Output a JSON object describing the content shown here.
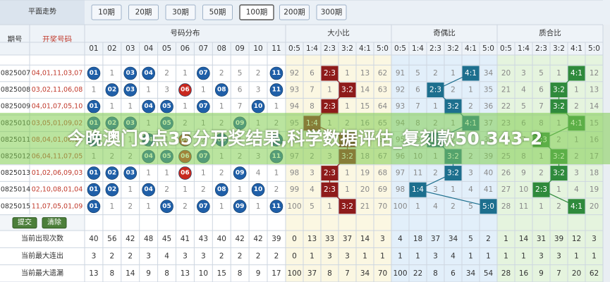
{
  "toolbar": {
    "title": "平面走势",
    "periods": [
      "10期",
      "20期",
      "30期",
      "50期",
      "100期",
      "200期",
      "300期"
    ],
    "selected": "100期"
  },
  "table": {
    "headers": {
      "issue": "期号",
      "numbers": "开奖号码",
      "distribution": "号码分布",
      "size_ratio": "大小比",
      "parity_ratio": "奇偶比",
      "prime_ratio": "质合比"
    },
    "number_columns": [
      "01",
      "02",
      "03",
      "04",
      "05",
      "06",
      "07",
      "08",
      "09",
      "10",
      "11"
    ],
    "ratio_columns": [
      "0:5",
      "1:4",
      "2:3",
      "3:2",
      "4:1",
      "5:0"
    ],
    "ball_color": "#1f5fa8",
    "hit_colors": {
      "size": "#8e1b1b",
      "parity": "#1d6f8e",
      "prime": "#2f8a3c"
    },
    "rows": [
      {
        "issue": "0825007",
        "numbers": "04,01,11,03,07",
        "distribution": [
          {
            "ball": "01"
          },
          1,
          {
            "ball": "03"
          },
          {
            "ball": "04"
          },
          2,
          1,
          {
            "ball": "07"
          },
          2,
          5,
          2,
          {
            "ball": "11"
          }
        ],
        "size": [
          92,
          6,
          {
            "hit": "2:3"
          },
          1,
          13,
          62
        ],
        "parity": [
          91,
          5,
          2,
          1,
          {
            "hit": "4:1"
          },
          34
        ],
        "prime": [
          20,
          3,
          5,
          1,
          {
            "hit": "4:1"
          },
          12
        ]
      },
      {
        "issue": "0825008",
        "numbers": "03,02,11,06,08",
        "distribution": [
          1,
          {
            "ball": "02"
          },
          {
            "ball": "03"
          },
          1,
          3,
          {
            "ball": "06",
            "color": "#c8281e"
          },
          1,
          {
            "ball": "08"
          },
          6,
          3,
          {
            "ball": "11"
          }
        ],
        "size": [
          93,
          7,
          1,
          {
            "hit": "3:2"
          },
          14,
          63
        ],
        "parity": [
          92,
          6,
          {
            "hit": "2:3"
          },
          2,
          1,
          35
        ],
        "prime": [
          21,
          4,
          6,
          {
            "hit": "3:2"
          },
          1,
          13
        ]
      },
      {
        "issue": "0825009",
        "numbers": "04,01,07,05,10",
        "distribution": [
          {
            "ball": "01"
          },
          1,
          1,
          {
            "ball": "04"
          },
          {
            "ball": "05"
          },
          1,
          {
            "ball": "07"
          },
          1,
          7,
          {
            "ball": "10"
          },
          1
        ],
        "size": [
          94,
          8,
          {
            "hit": "2:3"
          },
          1,
          15,
          64
        ],
        "parity": [
          93,
          7,
          1,
          {
            "hit": "3:2"
          },
          2,
          36
        ],
        "prime": [
          22,
          5,
          7,
          {
            "hit": "3:2"
          },
          2,
          14
        ]
      },
      {
        "issue": "0825010",
        "numbers": "03,05,01,09,02",
        "distribution": [
          {
            "ball": "01"
          },
          {
            "ball": "02"
          },
          {
            "ball": "03"
          },
          1,
          {
            "ball": "05"
          },
          2,
          1,
          2,
          {
            "ball": "09"
          },
          1,
          2
        ],
        "size": [
          95,
          {
            "hit": "1:4"
          },
          1,
          2,
          16,
          65
        ],
        "parity": [
          94,
          8,
          2,
          1,
          {
            "hit": "4:1"
          },
          37
        ],
        "prime": [
          23,
          6,
          8,
          1,
          {
            "hit": "4:1"
          },
          15
        ]
      },
      {
        "issue": "0825011",
        "numbers": "08,04,01,06,11",
        "distribution": [
          {
            "ball": "01"
          },
          1,
          1,
          {
            "ball": "04"
          },
          1,
          {
            "ball": "06",
            "color": "#c8281e"
          },
          2,
          {
            "ball": "08"
          },
          1,
          2,
          {
            "ball": "11"
          }
        ],
        "size": [
          96,
          1,
          2,
          {
            "hit": "3:2"
          },
          17,
          66
        ],
        "parity": [
          95,
          9,
          {
            "hit": "2:3"
          },
          2,
          1,
          38
        ],
        "prime": [
          24,
          7,
          {
            "hit": "2:3"
          },
          2,
          1,
          16
        ]
      },
      {
        "issue": "0825012",
        "numbers": "06,04,11,07,05",
        "distribution": [
          1,
          2,
          2,
          {
            "ball": "04"
          },
          {
            "ball": "05"
          },
          {
            "ball": "06",
            "color": "#c8281e"
          },
          {
            "ball": "07"
          },
          1,
          2,
          3,
          {
            "ball": "11"
          }
        ],
        "size": [
          97,
          2,
          3,
          {
            "hit": "3:2"
          },
          18,
          67
        ],
        "parity": [
          96,
          10,
          1,
          {
            "hit": "3:2"
          },
          2,
          39
        ],
        "prime": [
          25,
          8,
          1,
          {
            "hit": "3:2"
          },
          2,
          17
        ]
      },
      {
        "issue": "0825013",
        "numbers": "01,02,06,09,03",
        "distribution": [
          {
            "ball": "01"
          },
          {
            "ball": "02"
          },
          {
            "ball": "03"
          },
          1,
          1,
          {
            "ball": "06",
            "color": "#c8281e"
          },
          1,
          2,
          {
            "ball": "09"
          },
          4,
          1
        ],
        "size": [
          98,
          3,
          {
            "hit": "2:3"
          },
          1,
          19,
          68
        ],
        "parity": [
          97,
          11,
          2,
          {
            "hit": "3:2"
          },
          3,
          40
        ],
        "prime": [
          26,
          9,
          2,
          {
            "hit": "3:2"
          },
          3,
          18
        ]
      },
      {
        "issue": "0825014",
        "numbers": "02,10,08,01,04",
        "distribution": [
          {
            "ball": "01"
          },
          {
            "ball": "02"
          },
          1,
          {
            "ball": "04"
          },
          2,
          1,
          2,
          {
            "ball": "08"
          },
          1,
          {
            "ball": "10"
          },
          2
        ],
        "size": [
          99,
          4,
          {
            "hit": "2:3"
          },
          1,
          20,
          69
        ],
        "parity": [
          98,
          {
            "hit": "1:4"
          },
          3,
          1,
          4,
          41
        ],
        "prime": [
          27,
          10,
          {
            "hit": "2:3"
          },
          1,
          4,
          19
        ]
      },
      {
        "issue": "0825015",
        "numbers": "11,07,05,01,09",
        "distribution": [
          {
            "ball": "01"
          },
          1,
          2,
          1,
          {
            "ball": "05"
          },
          2,
          {
            "ball": "07"
          },
          1,
          {
            "ball": "09"
          },
          1,
          {
            "ball": "11"
          }
        ],
        "size": [
          100,
          5,
          1,
          {
            "hit": "3:2"
          },
          21,
          70
        ],
        "parity": [
          100,
          1,
          4,
          2,
          5,
          {
            "hit": "5:0"
          }
        ],
        "prime": [
          28,
          11,
          1,
          2,
          {
            "hit": "4:1"
          },
          20
        ]
      }
    ],
    "buttons": [
      "提交",
      "清除"
    ],
    "stats": [
      {
        "label": "当前出现次数",
        "distribution": [
          40,
          56,
          42,
          48,
          45,
          41,
          43,
          40,
          42,
          42,
          39
        ],
        "size": [
          0,
          13,
          33,
          37,
          14,
          3
        ],
        "parity": [
          4,
          18,
          37,
          34,
          5,
          2
        ],
        "prime": [
          1,
          14,
          31,
          39,
          12,
          3
        ]
      },
      {
        "label": "当前最大连出",
        "distribution": [
          3,
          2,
          2,
          3,
          4,
          3,
          3,
          2,
          2,
          2,
          2
        ],
        "size": [
          0,
          1,
          3,
          3,
          1,
          1
        ],
        "parity": [
          1,
          1,
          3,
          4,
          1,
          1
        ],
        "prime": [
          1,
          1,
          3,
          3,
          1,
          1
        ]
      },
      {
        "label": "当前最大遗漏",
        "distribution": [
          13,
          8,
          14,
          9,
          8,
          13,
          10,
          15,
          8,
          9,
          17
        ],
        "size": [
          100,
          37,
          8,
          7,
          34,
          70
        ],
        "parity": [
          100,
          22,
          8,
          6,
          34,
          54
        ],
        "prime": [
          28,
          16,
          9,
          7,
          20,
          62
        ]
      }
    ]
  },
  "overlay": {
    "text": "今晚澳门9点35分开奖结果,科学数据评估_复刻款50.343-2"
  }
}
